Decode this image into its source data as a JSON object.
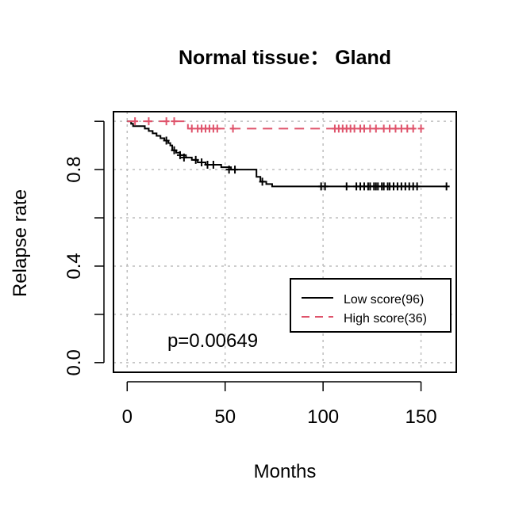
{
  "chart_data": {
    "type": "line",
    "title": "Normal tissue： Gland",
    "xlabel": "Months",
    "ylabel": "Relapse rate",
    "xlim": [
      -7,
      168
    ],
    "ylim": [
      -0.04,
      1.04
    ],
    "x_ticks": [
      0,
      50,
      100,
      150
    ],
    "x_tick_labels": [
      "0",
      "50",
      "100",
      "150"
    ],
    "y_ticks": [
      0.0,
      0.2,
      0.4,
      0.6,
      0.8,
      1.0
    ],
    "y_tick_labels": [
      "0.0",
      "",
      "0.4",
      "",
      "0.8",
      ""
    ],
    "grid": true,
    "legend_position": "bottom-right",
    "annotation": "p=0.00649",
    "colors": {
      "low": "#000000",
      "high": "#DF536B",
      "grid": "#BEBEBE"
    },
    "series": [
      {
        "name": "Low score(96)",
        "style": "solid",
        "steps": [
          [
            0,
            1.0
          ],
          [
            2,
            0.99
          ],
          [
            3,
            0.98
          ],
          [
            9,
            0.97
          ],
          [
            11,
            0.96
          ],
          [
            13,
            0.95
          ],
          [
            15,
            0.94
          ],
          [
            17,
            0.93
          ],
          [
            19,
            0.92
          ],
          [
            21,
            0.91
          ],
          [
            22,
            0.9
          ],
          [
            23,
            0.88
          ],
          [
            25,
            0.87
          ],
          [
            27,
            0.86
          ],
          [
            30,
            0.85
          ],
          [
            33,
            0.84
          ],
          [
            36,
            0.83
          ],
          [
            40,
            0.82
          ],
          [
            48,
            0.81
          ],
          [
            53,
            0.8
          ],
          [
            66,
            0.77
          ],
          [
            68,
            0.75
          ],
          [
            71,
            0.74
          ],
          [
            74,
            0.73
          ],
          [
            163,
            0.73
          ]
        ],
        "censors": [
          [
            20,
            0.92
          ],
          [
            24,
            0.88
          ],
          [
            27,
            0.86
          ],
          [
            29,
            0.85
          ],
          [
            35,
            0.84
          ],
          [
            38,
            0.83
          ],
          [
            41,
            0.82
          ],
          [
            44,
            0.82
          ],
          [
            52,
            0.8
          ],
          [
            55,
            0.8
          ],
          [
            69,
            0.75
          ],
          [
            99,
            0.73
          ],
          [
            101,
            0.73
          ],
          [
            112,
            0.73
          ],
          [
            117,
            0.73
          ],
          [
            119,
            0.73
          ],
          [
            121,
            0.73
          ],
          [
            123,
            0.73
          ],
          [
            124,
            0.73
          ],
          [
            126,
            0.73
          ],
          [
            127,
            0.73
          ],
          [
            128,
            0.73
          ],
          [
            130,
            0.73
          ],
          [
            131,
            0.73
          ],
          [
            133,
            0.73
          ],
          [
            134,
            0.73
          ],
          [
            136,
            0.73
          ],
          [
            138,
            0.73
          ],
          [
            140,
            0.73
          ],
          [
            142,
            0.73
          ],
          [
            144,
            0.73
          ],
          [
            146,
            0.73
          ],
          [
            148,
            0.73
          ],
          [
            163,
            0.73
          ]
        ]
      },
      {
        "name": "High score(36)",
        "style": "dashed",
        "steps": [
          [
            0,
            1.0
          ],
          [
            31,
            0.97
          ],
          [
            150,
            0.97
          ]
        ],
        "censors": [
          [
            4,
            1.0
          ],
          [
            11,
            1.0
          ],
          [
            20,
            1.0
          ],
          [
            24,
            1.0
          ],
          [
            33,
            0.97
          ],
          [
            36,
            0.97
          ],
          [
            38,
            0.97
          ],
          [
            40,
            0.97
          ],
          [
            42,
            0.97
          ],
          [
            44,
            0.97
          ],
          [
            46,
            0.97
          ],
          [
            54,
            0.97
          ],
          [
            106,
            0.97
          ],
          [
            108,
            0.97
          ],
          [
            110,
            0.97
          ],
          [
            112,
            0.97
          ],
          [
            114,
            0.97
          ],
          [
            116,
            0.97
          ],
          [
            119,
            0.97
          ],
          [
            121,
            0.97
          ],
          [
            124,
            0.97
          ],
          [
            127,
            0.97
          ],
          [
            131,
            0.97
          ],
          [
            134,
            0.97
          ],
          [
            137,
            0.97
          ],
          [
            140,
            0.97
          ],
          [
            143,
            0.97
          ],
          [
            146,
            0.97
          ],
          [
            150,
            0.97
          ]
        ]
      }
    ]
  }
}
